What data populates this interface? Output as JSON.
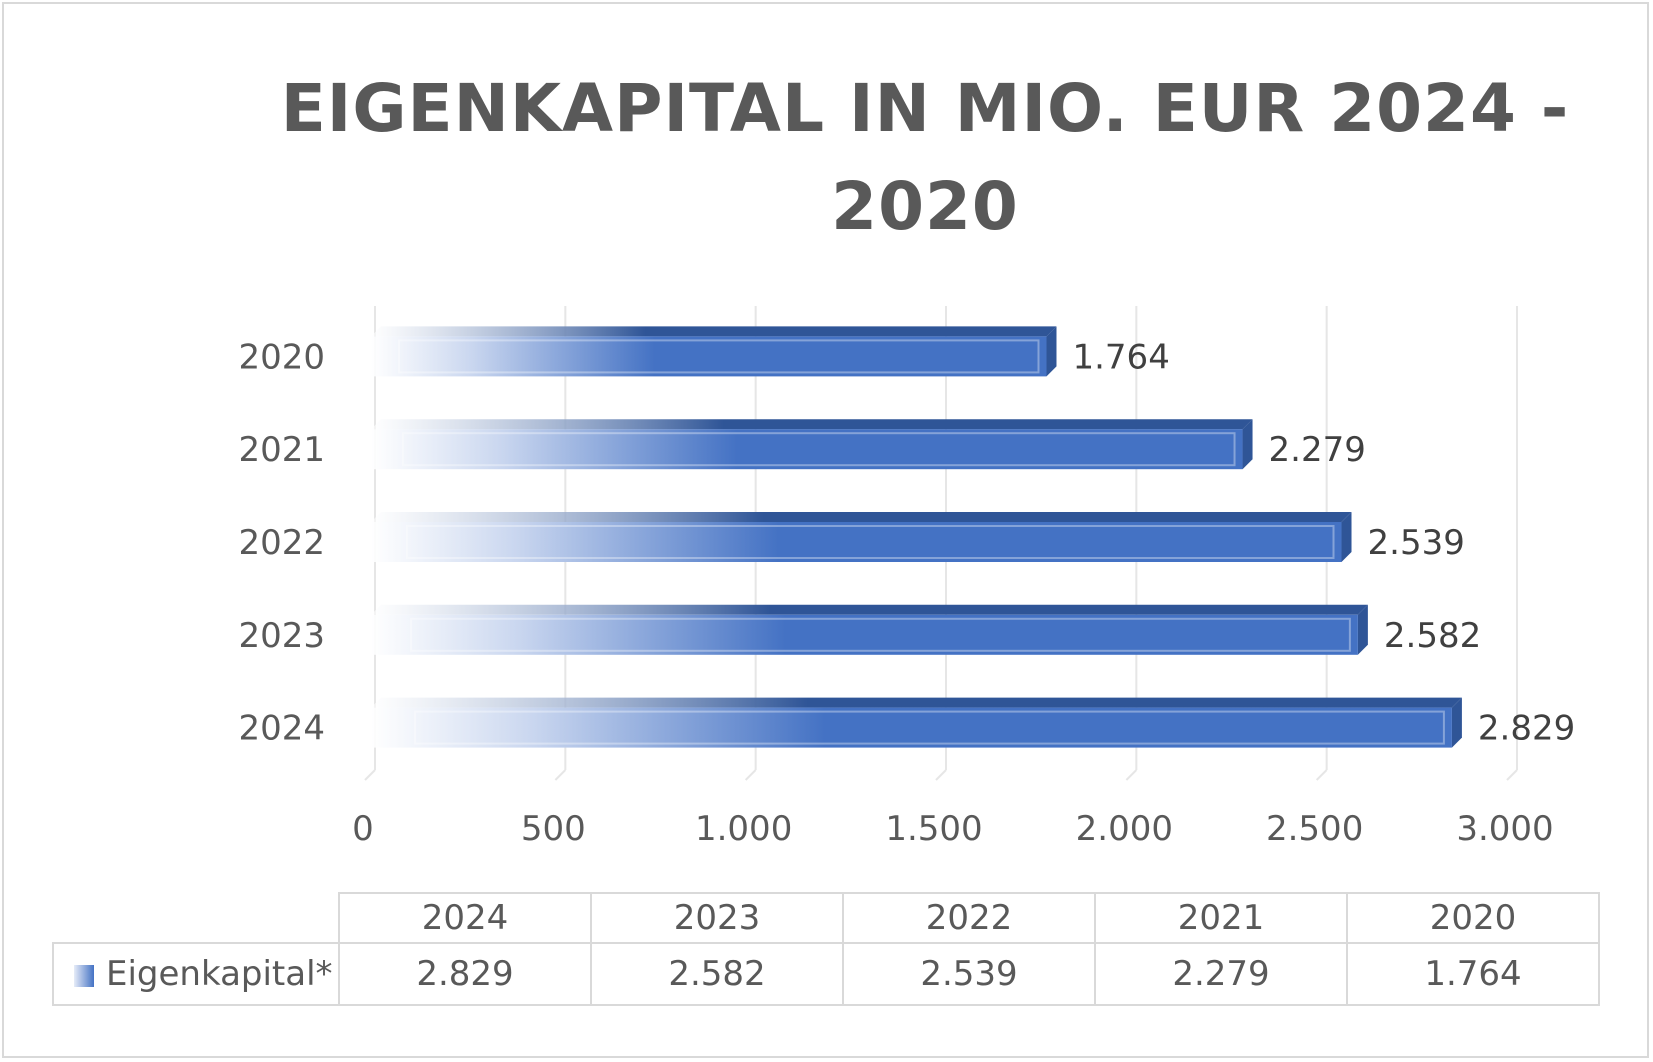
{
  "chart_data": {
    "type": "bar",
    "orientation": "horizontal",
    "title": "EIGENKAPITAL IN MIO. EUR 2024 - 2020",
    "categories": [
      "2020",
      "2021",
      "2022",
      "2023",
      "2024"
    ],
    "series": [
      {
        "name": "Eigenkapital*",
        "values": [
          1764,
          2279,
          2539,
          2582,
          2829
        ],
        "labels": [
          "1.764",
          "2.279",
          "2.539",
          "2.582",
          "2.829"
        ]
      }
    ],
    "xlim": [
      0,
      3000
    ],
    "xticks": [
      0,
      500,
      1000,
      1500,
      2000,
      2500,
      3000
    ],
    "xtick_labels": [
      "0",
      "500",
      "1.000",
      "1.500",
      "2.000",
      "2.500",
      "3.000"
    ],
    "grid": true,
    "legend": "data-table",
    "color": "#4472c4"
  },
  "data_table": {
    "header": [
      "2024",
      "2023",
      "2022",
      "2021",
      "2020"
    ],
    "series_label": "Eigenkapital*",
    "values": [
      "2.829",
      "2.582",
      "2.539",
      "2.279",
      "1.764"
    ]
  }
}
